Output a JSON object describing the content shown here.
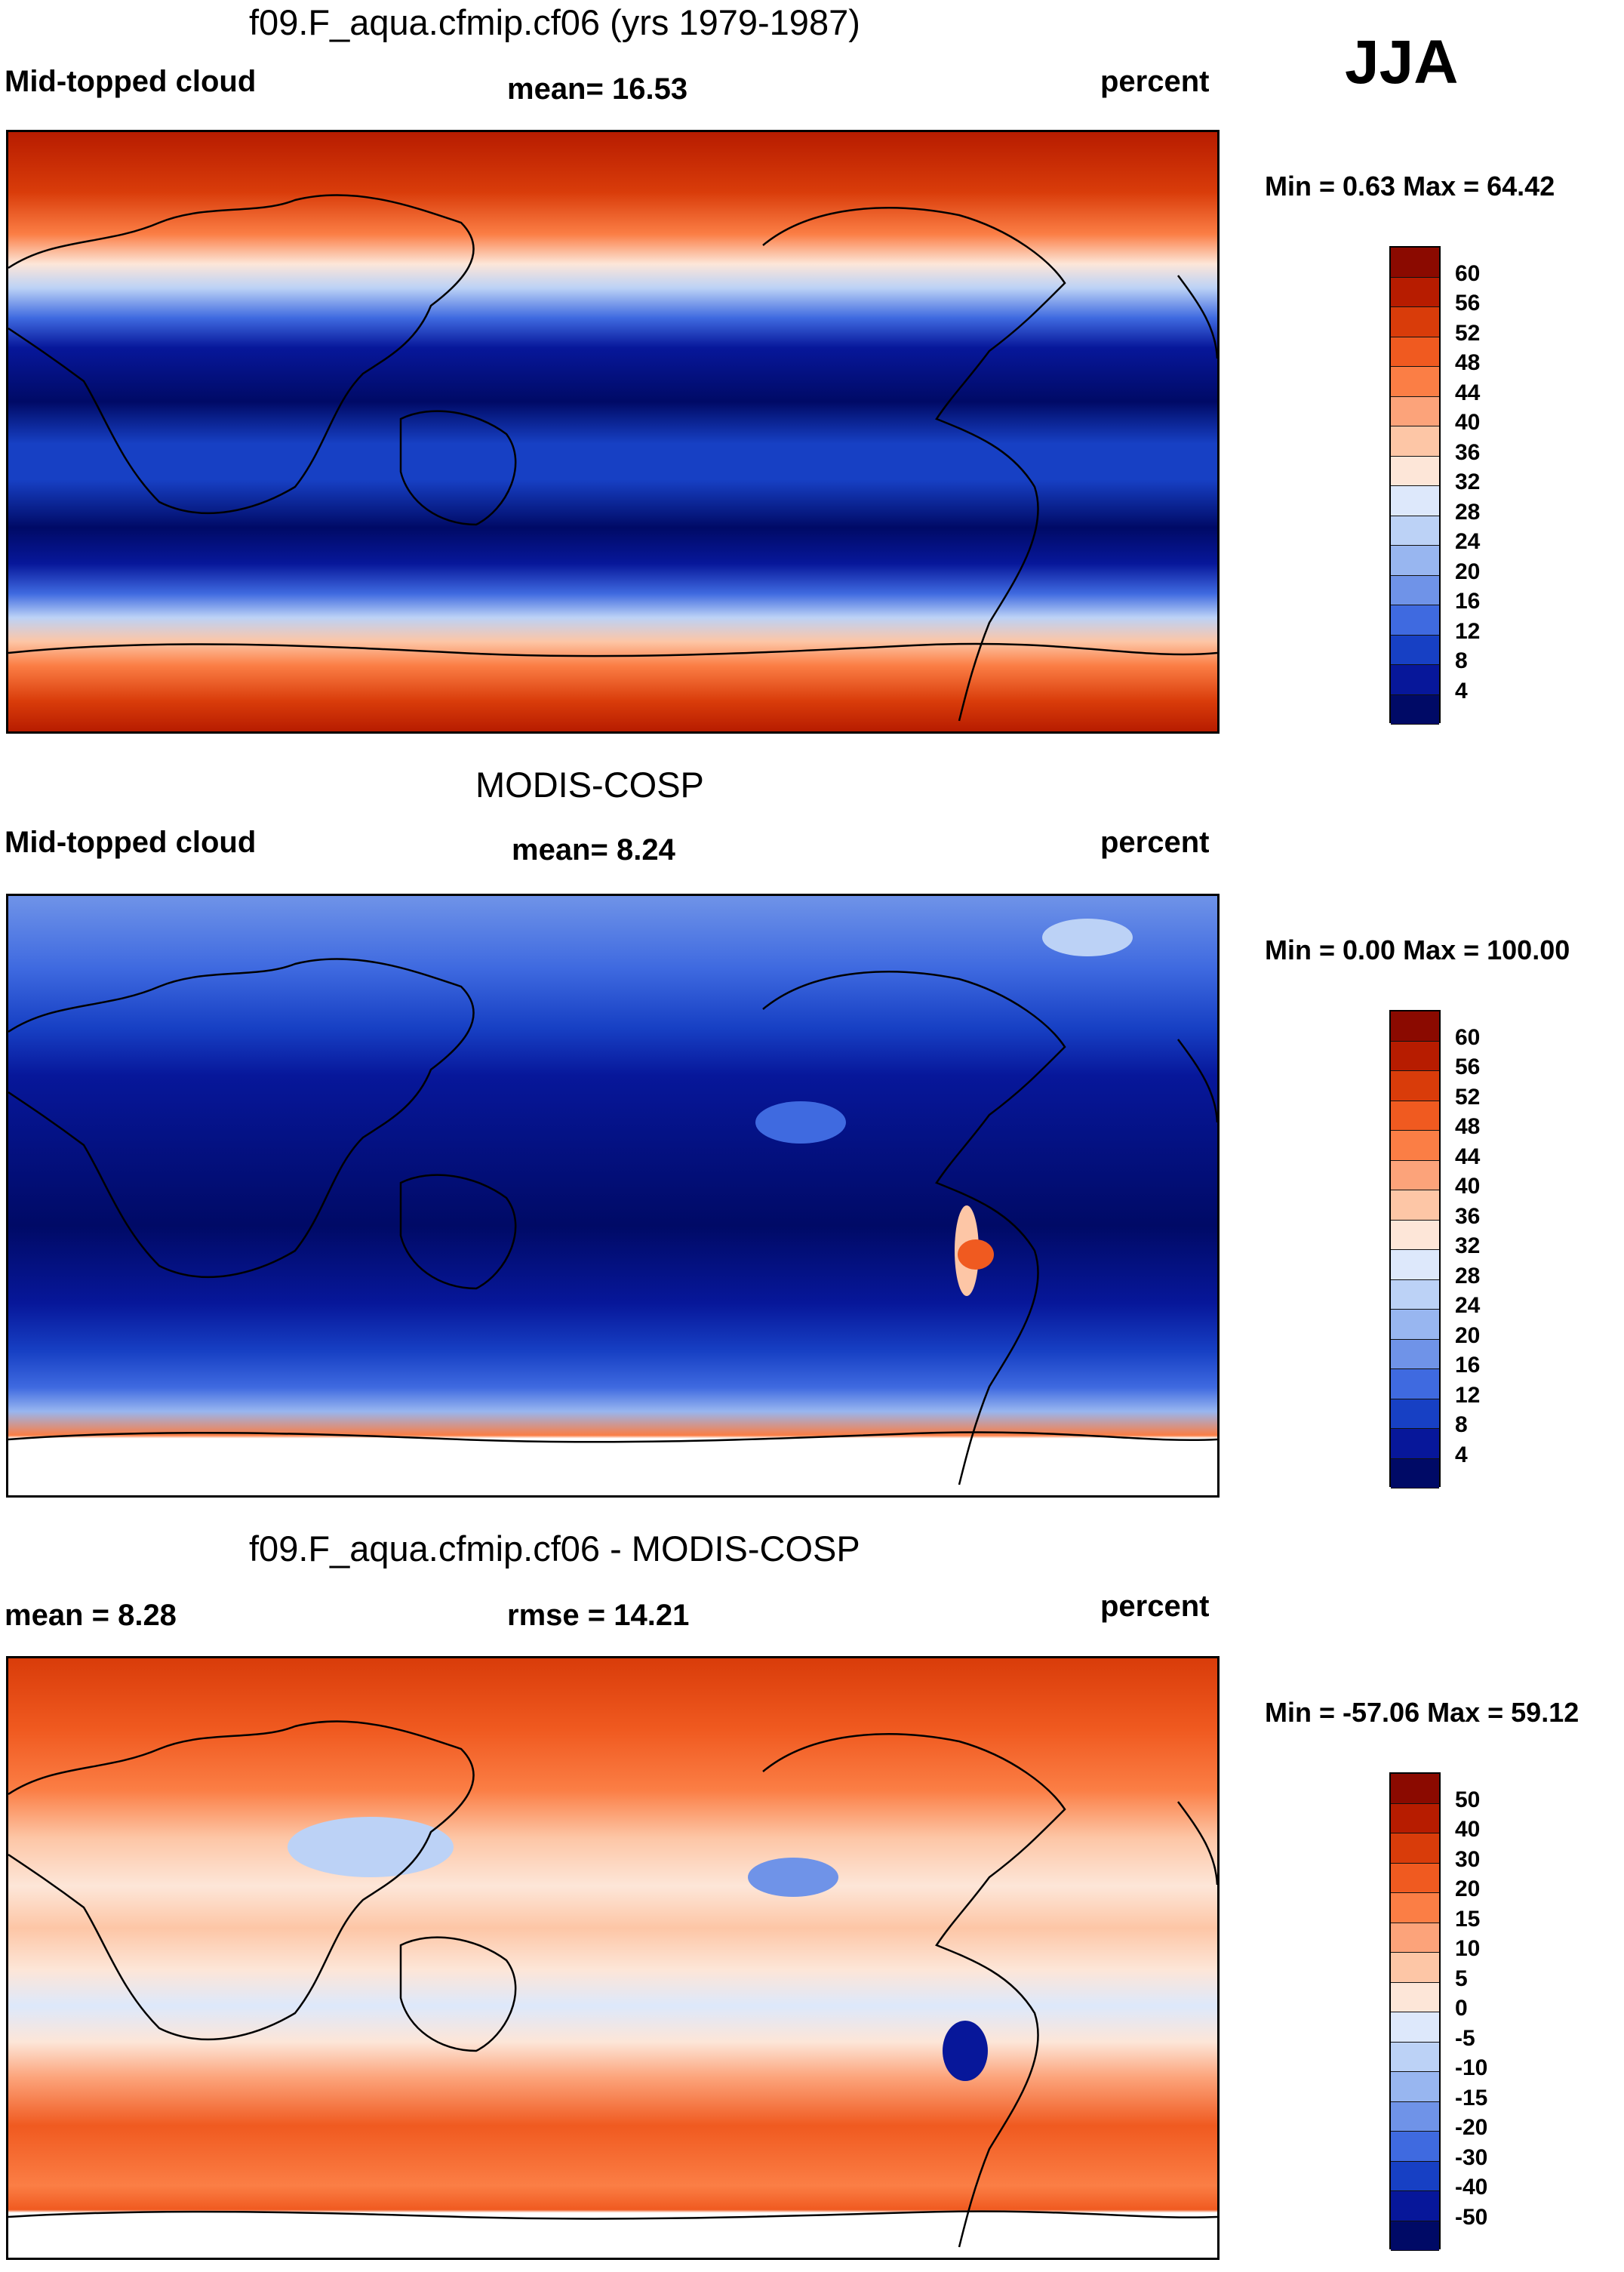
{
  "season": "JJA",
  "panels": [
    {
      "title": "f09.F_aqua.cfmip.cf06 (yrs 1979-1987)",
      "left": "Mid-topped cloud",
      "center": "mean=  16.53",
      "right": "percent",
      "minmax": "Min =   0.63 Max =  64.42",
      "cbar_labels": [
        "60",
        "56",
        "52",
        "48",
        "44",
        "40",
        "36",
        "32",
        "28",
        "24",
        "20",
        "16",
        "12",
        "8",
        "4"
      ],
      "cbar_colors": [
        "#8b0a00",
        "#b71c00",
        "#d93c0a",
        "#f05a20",
        "#fb7e45",
        "#fca37a",
        "#fdc6a6",
        "#fde6d8",
        "#dde8fb",
        "#bcd2f6",
        "#98b6f0",
        "#6f93e8",
        "#3f6ae0",
        "#1740c4",
        "#07179a",
        "#000a66"
      ]
    },
    {
      "title": "MODIS-COSP",
      "left": "Mid-topped cloud",
      "center": "mean=   8.24",
      "right": "percent",
      "minmax": "Min =   0.00 Max = 100.00",
      "cbar_labels": [
        "60",
        "56",
        "52",
        "48",
        "44",
        "40",
        "36",
        "32",
        "28",
        "24",
        "20",
        "16",
        "12",
        "8",
        "4"
      ],
      "cbar_colors": [
        "#8b0a00",
        "#b71c00",
        "#d93c0a",
        "#f05a20",
        "#fb7e45",
        "#fca37a",
        "#fdc6a6",
        "#fde6d8",
        "#dde8fb",
        "#bcd2f6",
        "#98b6f0",
        "#6f93e8",
        "#3f6ae0",
        "#1740c4",
        "#07179a",
        "#000a66"
      ]
    },
    {
      "title": "f09.F_aqua.cfmip.cf06 - MODIS-COSP",
      "left": "mean =    8.28",
      "center": "rmse =   14.21",
      "right": "percent",
      "minmax": "Min = -57.06 Max =  59.12",
      "cbar_labels": [
        "50",
        "40",
        "30",
        "20",
        "15",
        "10",
        "5",
        "0",
        "-5",
        "-10",
        "-15",
        "-20",
        "-30",
        "-40",
        "-50"
      ],
      "cbar_colors": [
        "#8b0a00",
        "#b71c00",
        "#d93c0a",
        "#f05a20",
        "#fb7e45",
        "#fca37a",
        "#fdc6a6",
        "#fde6d8",
        "#dde8fb",
        "#bcd2f6",
        "#98b6f0",
        "#6f93e8",
        "#3f6ae0",
        "#1740c4",
        "#07179a",
        "#000a66"
      ]
    }
  ]
}
